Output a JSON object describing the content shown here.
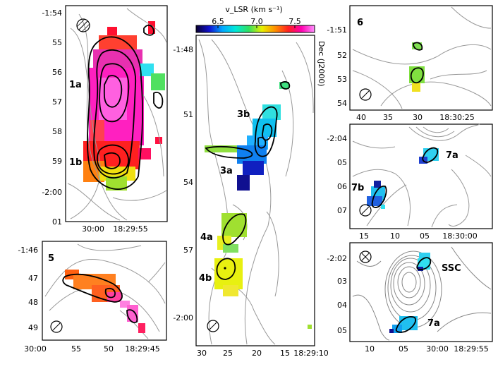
{
  "figure": {
    "colorbar": {
      "label": "v_LSR (km s⁻¹)",
      "ticks": [
        "6.5",
        "7.0",
        "7.5"
      ],
      "colors": [
        "#0a0030",
        "#1010d0",
        "#00a8ff",
        "#00e8d8",
        "#30e060",
        "#e8f000",
        "#ff9000",
        "#ff2020",
        "#ff00b0",
        "#ff90ff"
      ]
    },
    "dec_axis_label": "Dec (J2000)"
  },
  "chart_data": [
    {
      "panel": "1",
      "type": "heatmap",
      "labels": [
        "1a",
        "1b"
      ],
      "y_ticks": [
        "-1:54",
        "55",
        "56",
        "57",
        "58",
        "59",
        "-2:00",
        "01"
      ],
      "x_ticks": [
        "30:00",
        "18:29:55"
      ]
    },
    {
      "panel": "3-4",
      "type": "heatmap",
      "labels": [
        "3b",
        "3a",
        "4a",
        "4b"
      ],
      "y_ticks": [
        "-1:48",
        "51",
        "54",
        "57",
        "-2:00"
      ],
      "x_ticks": [
        "30",
        "25",
        "20",
        "15",
        "18:29:10"
      ]
    },
    {
      "panel": "5",
      "type": "heatmap",
      "labels": [
        "5"
      ],
      "y_ticks": [
        "-1:46",
        "47",
        "48",
        "49"
      ],
      "x_ticks": [
        "30:00",
        "55",
        "50",
        "18:29:45"
      ]
    },
    {
      "panel": "6",
      "type": "heatmap",
      "labels": [
        "6"
      ],
      "y_ticks": [
        "-1:51",
        "52",
        "53",
        "54"
      ],
      "x_ticks": [
        "40",
        "35",
        "30",
        "18:30:25"
      ]
    },
    {
      "panel": "7",
      "type": "heatmap",
      "labels": [
        "7a",
        "7b"
      ],
      "y_ticks": [
        "-2:04",
        "05",
        "06",
        "07"
      ],
      "x_ticks": [
        "15",
        "10",
        "05",
        "18:30:00"
      ]
    },
    {
      "panel": "SSC",
      "type": "heatmap",
      "labels": [
        "SSC",
        "7a"
      ],
      "y_ticks": [
        "-2:02",
        "03",
        "04",
        "05"
      ],
      "x_ticks": [
        "10",
        "05",
        "30:00",
        "18:29:55"
      ]
    }
  ]
}
